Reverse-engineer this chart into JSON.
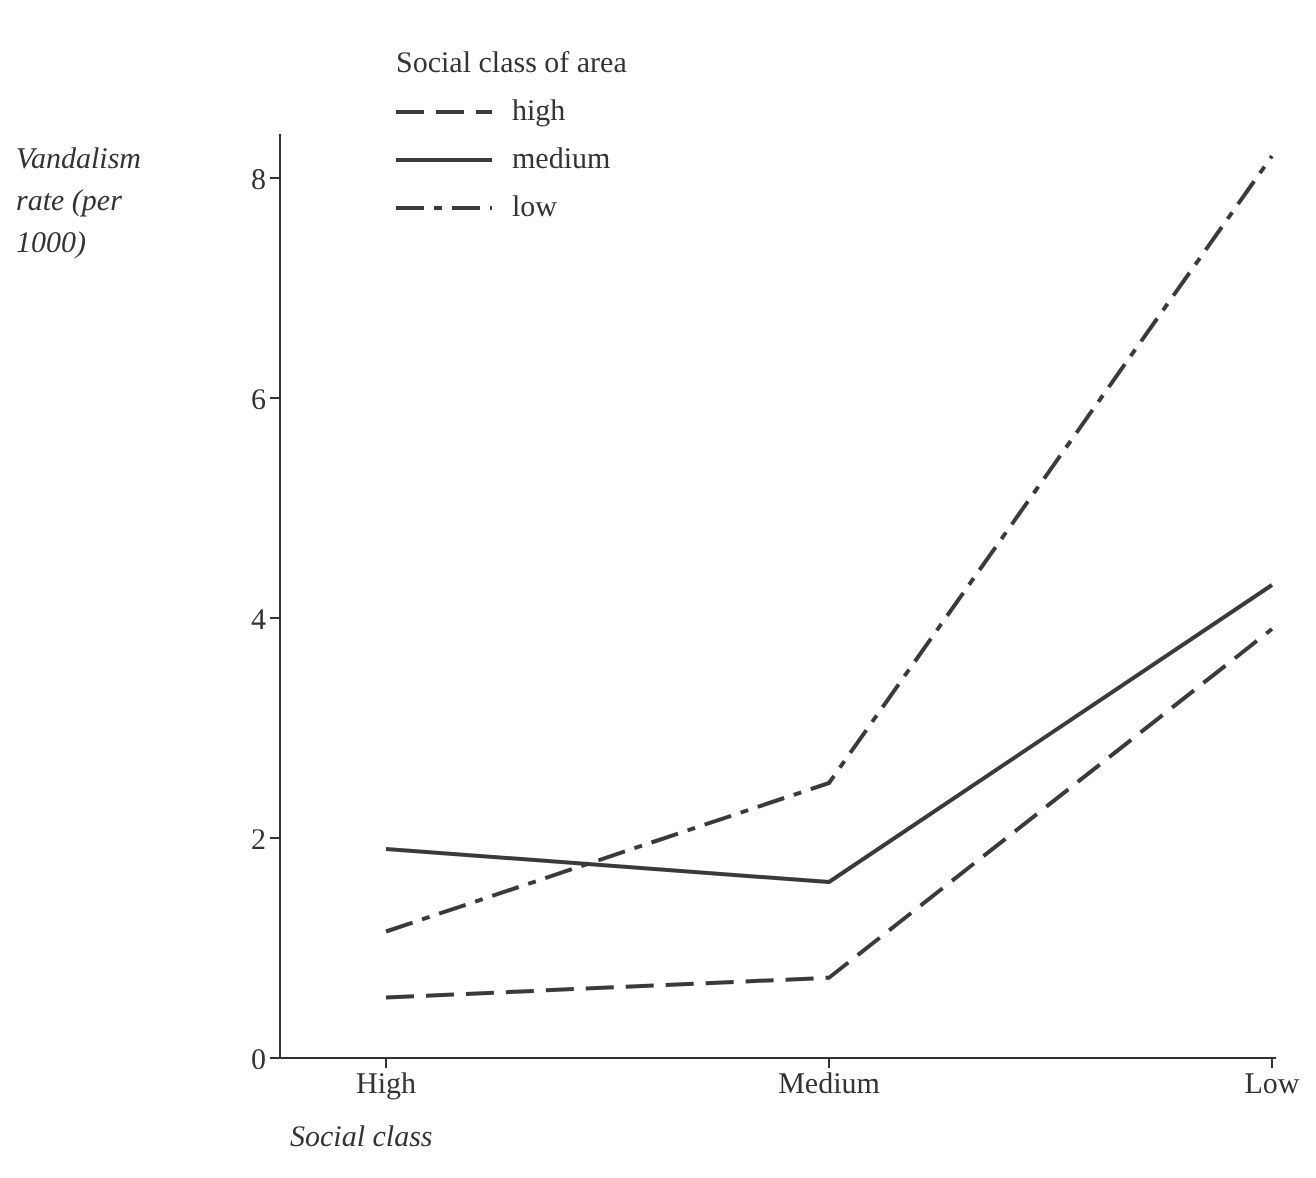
{
  "chart_data": {
    "type": "line",
    "xlabel": "Social class",
    "ylabel": "Vandalism rate (per 1000)",
    "legend_title": "Social class of area",
    "categories": [
      "High",
      "Medium",
      "Low"
    ],
    "series": [
      {
        "name": "high",
        "color": "#3a3a3a",
        "line_style": "dashed",
        "values": [
          0.55,
          0.73,
          3.9
        ]
      },
      {
        "name": "medium",
        "color": "#3a3a3a",
        "line_style": "solid",
        "values": [
          1.9,
          1.6,
          4.3
        ]
      },
      {
        "name": "low",
        "color": "#3a3a3a",
        "line_style": "dashdot",
        "values": [
          1.15,
          2.5,
          8.2
        ]
      }
    ],
    "ylim": [
      0,
      8.4
    ],
    "yticks": [
      0,
      2,
      4,
      6,
      8
    ],
    "grid": false,
    "legend": "top left",
    "marker": "none"
  }
}
